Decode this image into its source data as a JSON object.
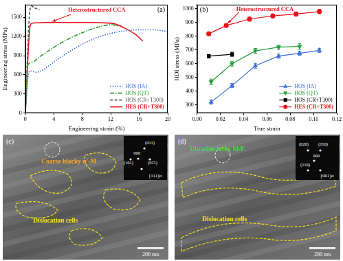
{
  "chart_data": [
    {
      "type": "line",
      "title": "(a)",
      "x_label": "Engineering strain (%)",
      "y_label": "Engineering stress (MPa)",
      "annotations": [
        "Heterostructured CCA"
      ],
      "xlim": [
        0,
        20
      ],
      "xticks": [
        0,
        4,
        8,
        12,
        16,
        20
      ],
      "ylim": [
        0,
        1700
      ],
      "yticks": [
        0,
        300,
        600,
        900,
        1200,
        1500
      ],
      "grid": false,
      "legend": "lower right",
      "series": [
        {
          "name": "HOS (IA)",
          "color": "#3b6fd6",
          "line_style": "dotted",
          "x": [
            0,
            0.5,
            0.8,
            1.5,
            2.5,
            4,
            6,
            8,
            10,
            12,
            14,
            16,
            18,
            20
          ],
          "values": [
            0,
            640,
            660,
            640,
            680,
            800,
            950,
            1080,
            1180,
            1250,
            1290,
            1305,
            1305,
            1280
          ]
        },
        {
          "name": "HOS (QT)",
          "color": "#2ca02c",
          "line_style": "dashdot",
          "x": [
            0,
            0.4,
            1,
            2,
            4,
            6,
            8,
            10,
            12,
            13
          ],
          "values": [
            0,
            760,
            800,
            880,
            1030,
            1160,
            1260,
            1340,
            1385,
            1370
          ]
        },
        {
          "name": "HOS (CR+T300)",
          "color": "#555555",
          "line_style": "dashed",
          "x": [
            0,
            0.6,
            0.9,
            1.2,
            1.6,
            2
          ],
          "values": [
            0,
            1560,
            1680,
            1650,
            1640,
            1620
          ]
        },
        {
          "name": "HES (CR+T300)",
          "color": "#e8141b",
          "line_style": "solid",
          "x": [
            0,
            0.7,
            1,
            1.5,
            3,
            5,
            8,
            11,
            12.5,
            14,
            15.5,
            16.5
          ],
          "values": [
            0,
            1380,
            1410,
            1415,
            1420,
            1420,
            1420,
            1415,
            1400,
            1330,
            1230,
            1130
          ]
        }
      ]
    },
    {
      "type": "line",
      "title": "(b)",
      "x_label": "True strain",
      "y_label": "HDI stress (MPa)",
      "annotations": [
        "Heterostructured CCA"
      ],
      "xlim": [
        0,
        0.12
      ],
      "xticks": [
        {
          "value": 0,
          "label": "0.00"
        },
        0.02,
        0.04,
        0.06,
        0.08,
        {
          "value": 0.1,
          "label": "0.10"
        },
        0.12
      ],
      "ylim": [
        240,
        1030
      ],
      "yticks": [
        300,
        400,
        500,
        600,
        700,
        800,
        900,
        1000
      ],
      "grid": false,
      "legend": "lower right",
      "series": [
        {
          "name": "HOS (IA)",
          "color": "#3b6fd6",
          "line_style": "solid",
          "marker": "triangle",
          "x": [
            0.012,
            0.03,
            0.05,
            0.07,
            0.088,
            0.105
          ],
          "values": [
            320,
            440,
            585,
            655,
            675,
            697
          ],
          "errors": [
            15,
            15,
            18,
            15,
            15,
            15
          ]
        },
        {
          "name": "HOS (QT)",
          "color": "#1f9e3a",
          "line_style": "solid",
          "marker": "triangle_down",
          "x": [
            0.012,
            0.03,
            0.05,
            0.07,
            0.088
          ],
          "values": [
            468,
            600,
            693,
            720,
            725
          ],
          "errors": [
            20,
            18,
            18,
            15,
            20
          ]
        },
        {
          "name": "HOS (CR+T300)",
          "color": "#000000",
          "line_style": "solid",
          "marker": "square",
          "x": [
            0.01,
            0.03
          ],
          "values": [
            655,
            668
          ],
          "errors": [
            12,
            15
          ]
        },
        {
          "name": "HES (CR+T300)",
          "color": "#e8141b",
          "line_style": "solid",
          "marker": "circle",
          "x": [
            0.01,
            0.025,
            0.045,
            0.065,
            0.085,
            0.105
          ],
          "values": [
            818,
            878,
            925,
            948,
            962,
            980
          ],
          "errors": [
            12,
            12,
            15,
            12,
            15,
            15
          ]
        }
      ]
    }
  ],
  "micrographs": [
    {
      "label": "(c)",
      "phase": "Coarse blocky α'-M",
      "phase_color": "#f5a623",
      "region": "Dislocation cells",
      "scale_bar": "200 nm",
      "diffraction": {
        "spots": [
          "(011)",
          "000",
          "(101)",
          "(01̄1)"
        ],
        "zone_axis": "[111]α"
      }
    },
    {
      "label": "(d)",
      "phase": "Ultrafine lathy M/F",
      "phase_color": "#3ddc3d",
      "region": "Dislocation cells",
      "scale_bar": "200 nm",
      "diffraction": {
        "spots": [
          "(020)",
          "(1̄10)",
          "000",
          "(110)"
        ],
        "zone_axis": "[001]α"
      }
    }
  ]
}
